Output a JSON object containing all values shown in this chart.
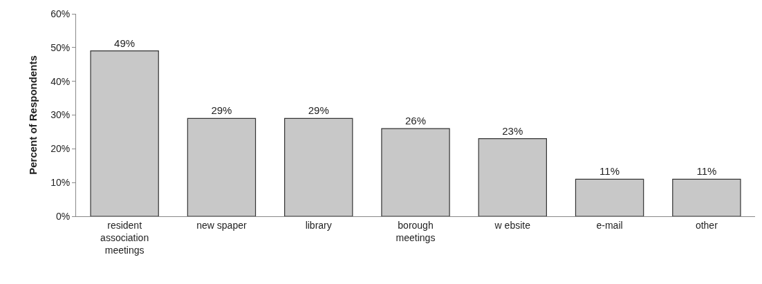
{
  "chart_data": {
    "type": "bar",
    "ylabel": "Percent of Respondents",
    "categories": [
      "resident association meetings",
      "new spaper",
      "library",
      "borough meetings",
      "w ebsite",
      "e-mail",
      "other"
    ],
    "values": [
      49,
      29,
      29,
      26,
      23,
      11,
      11
    ],
    "value_labels": [
      "49%",
      "29%",
      "29%",
      "26%",
      "23%",
      "11%",
      "11%"
    ],
    "color": "#c8c8c8",
    "ylim": [
      0,
      60
    ],
    "yticks": [
      {
        "value": 0,
        "label": "0%"
      },
      {
        "value": 10,
        "label": "10%"
      },
      {
        "value": 20,
        "label": "20%"
      },
      {
        "value": 30,
        "label": "30%"
      },
      {
        "value": 40,
        "label": "40%"
      },
      {
        "value": 50,
        "label": "50%"
      },
      {
        "value": 60,
        "label": "60%"
      }
    ],
    "tick_labels": "xy"
  }
}
